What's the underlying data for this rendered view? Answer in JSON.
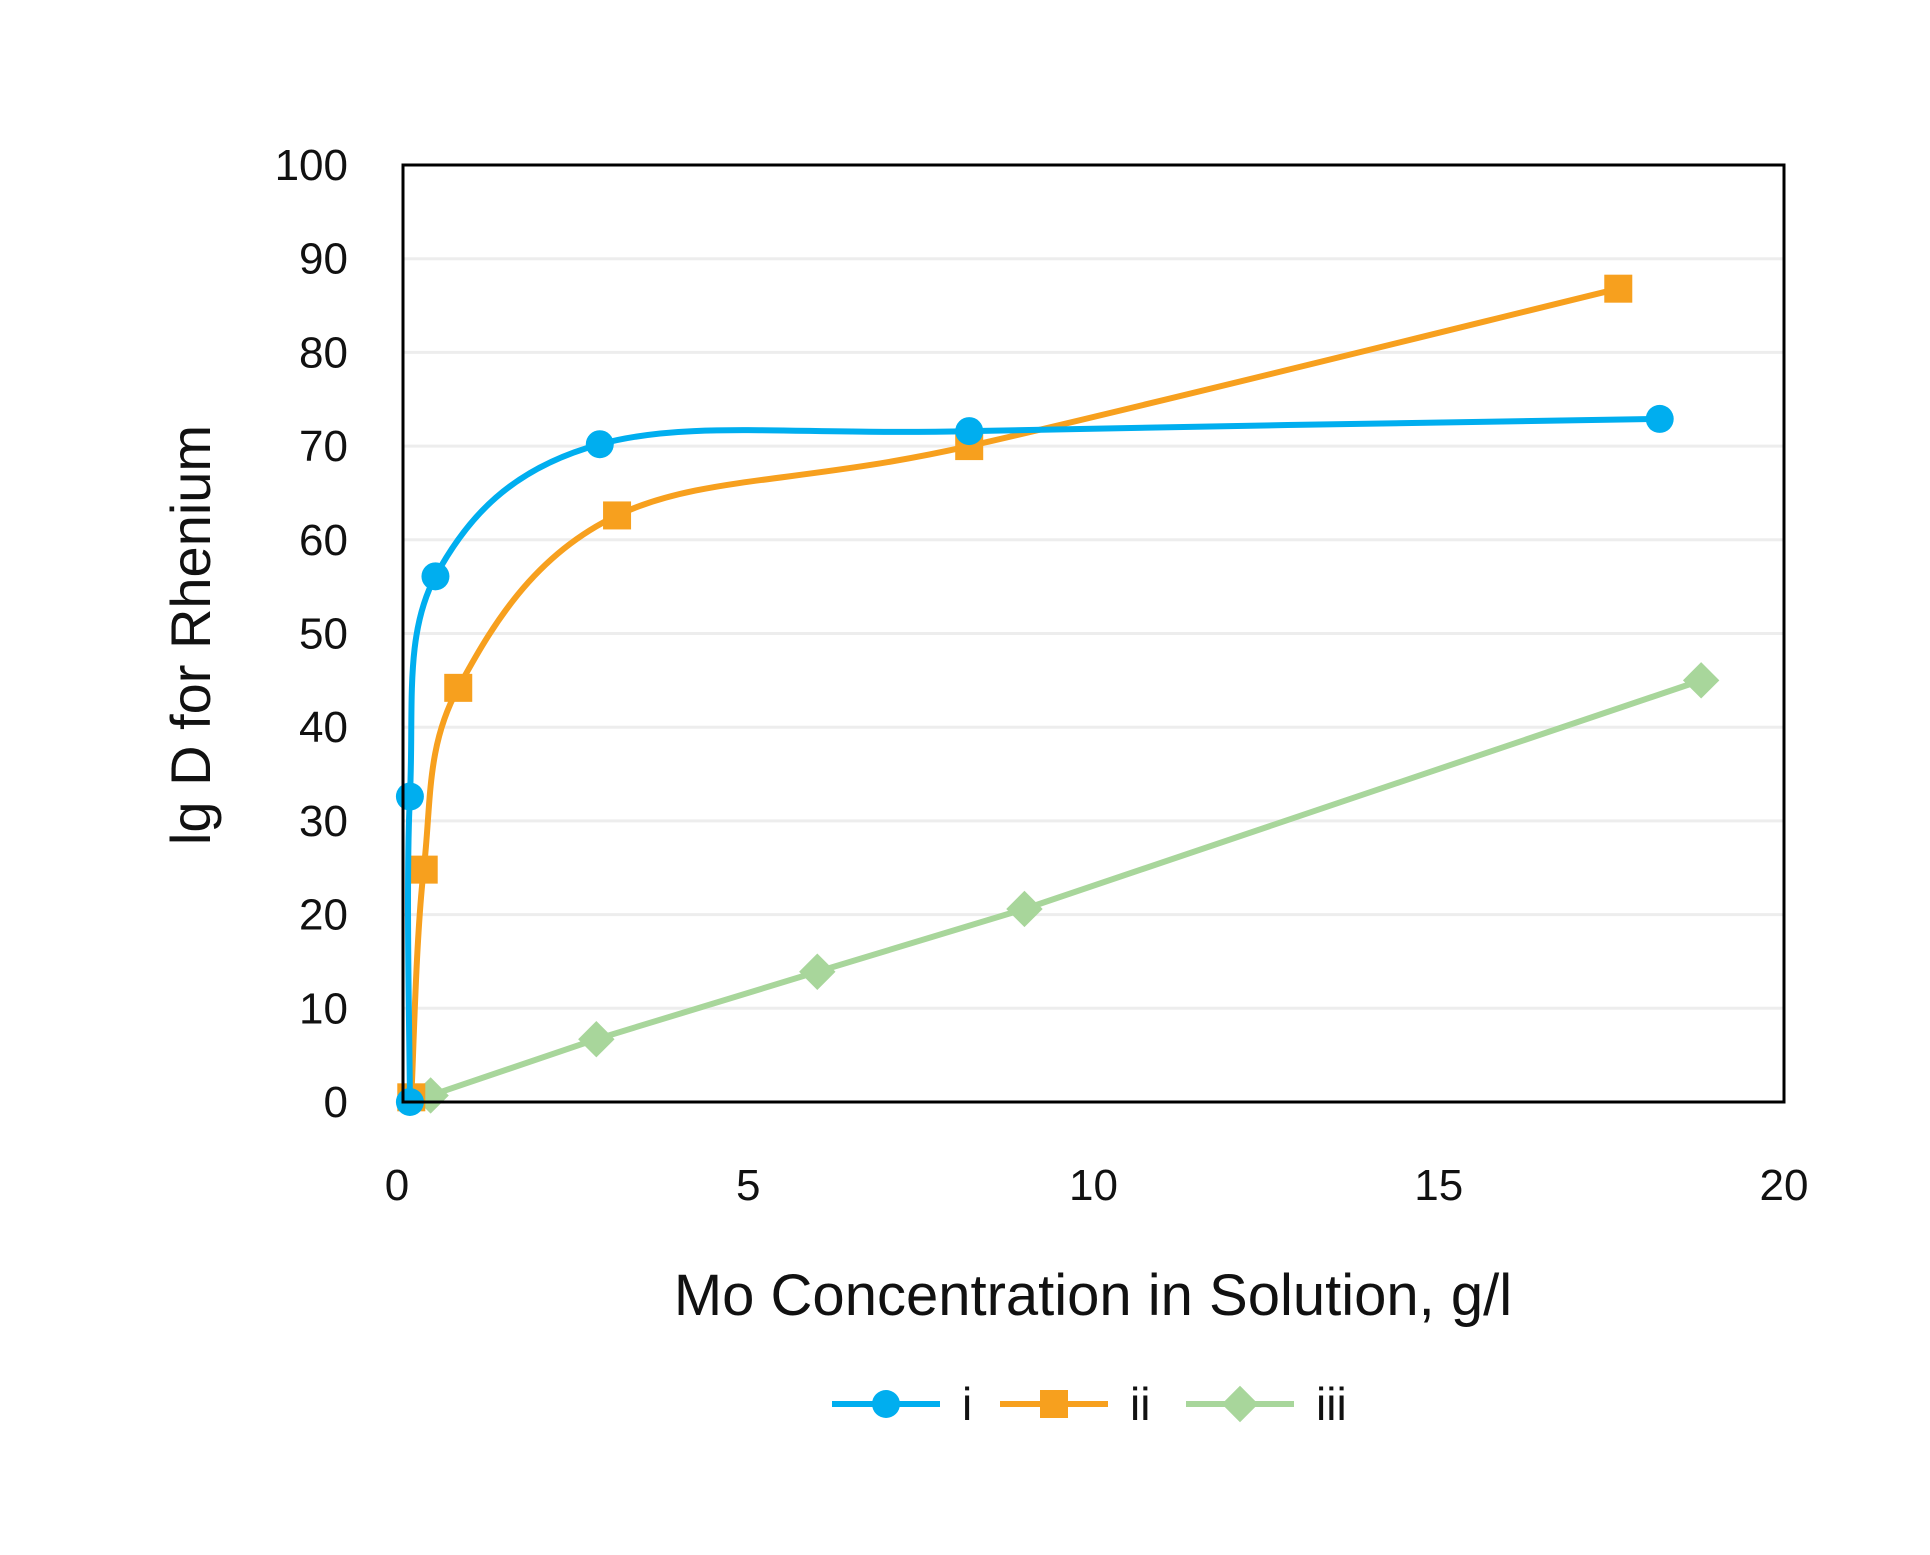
{
  "chart_data": {
    "type": "line",
    "title": "",
    "xlabel": "Mo Concentration in Solution, g/l",
    "ylabel": "lg D for Rhenium",
    "xlim": [
      0,
      20
    ],
    "ylim": [
      0,
      100
    ],
    "xticks": [
      0,
      5,
      10,
      15,
      20
    ],
    "yticks": [
      0,
      10,
      20,
      30,
      40,
      50,
      60,
      70,
      80,
      90,
      100
    ],
    "grid": "horizontal",
    "legend_position": "bottom",
    "series": [
      {
        "name": "i",
        "color": "#00AEEF",
        "marker": "circle",
        "smooth": true,
        "x": [
          0.1,
          0.1,
          0.47,
          2.85,
          8.2,
          18.2
        ],
        "y": [
          0,
          32.6,
          56.1,
          70.2,
          71.6,
          72.9
        ]
      },
      {
        "name": "ii",
        "color": "#F7A01E",
        "marker": "square",
        "smooth": true,
        "x": [
          0.12,
          0.3,
          0.8,
          3.1,
          8.2,
          17.6
        ],
        "y": [
          0.5,
          24.8,
          44.2,
          62.6,
          70.0,
          86.8
        ]
      },
      {
        "name": "iii",
        "color": "#A8D69B",
        "marker": "diamond",
        "smooth": false,
        "x": [
          0.4,
          2.8,
          6.0,
          9.0,
          18.8
        ],
        "y": [
          0.7,
          6.7,
          13.9,
          20.6,
          45.0
        ]
      }
    ]
  }
}
